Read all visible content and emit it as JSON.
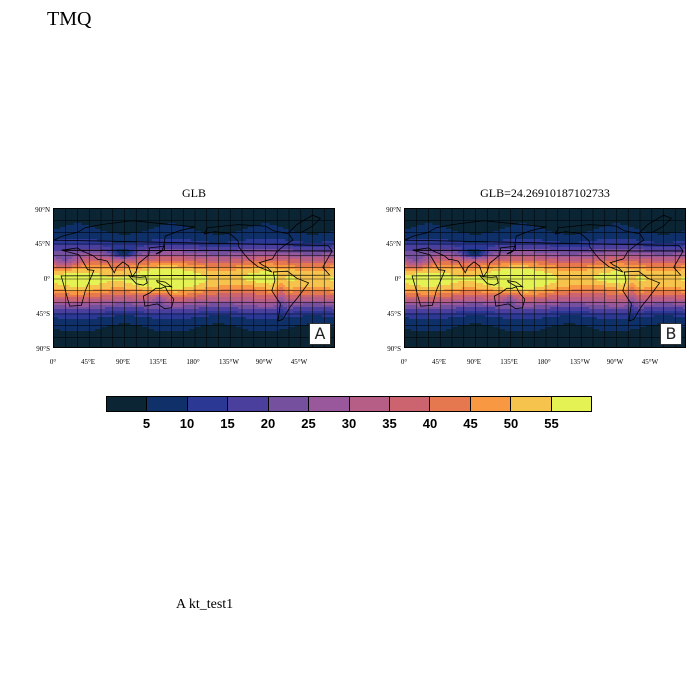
{
  "title": "TMQ",
  "footnote": "A  kt_test1",
  "panels": [
    {
      "title": "GLB",
      "tag": "A"
    },
    {
      "title": "GLB=24.26910187102733",
      "tag": "B"
    }
  ],
  "lat_labels": [
    "90°N",
    "45°N",
    "0°",
    "45°S",
    "90°S"
  ],
  "lon_labels": [
    "0°",
    "45°E",
    "90°E",
    "135°E",
    "180°",
    "135°W",
    "90°W",
    "45°W"
  ],
  "colorbar": {
    "colors": [
      "#0b2535",
      "#0f3068",
      "#2c3994",
      "#4b3f9e",
      "#75509f",
      "#99589b",
      "#b65e85",
      "#cc6470",
      "#e6784f",
      "#f89843",
      "#f6c44c",
      "#e4f253"
    ],
    "labels": [
      "5",
      "10",
      "15",
      "20",
      "25",
      "30",
      "35",
      "40",
      "45",
      "50",
      "55"
    ]
  }
}
